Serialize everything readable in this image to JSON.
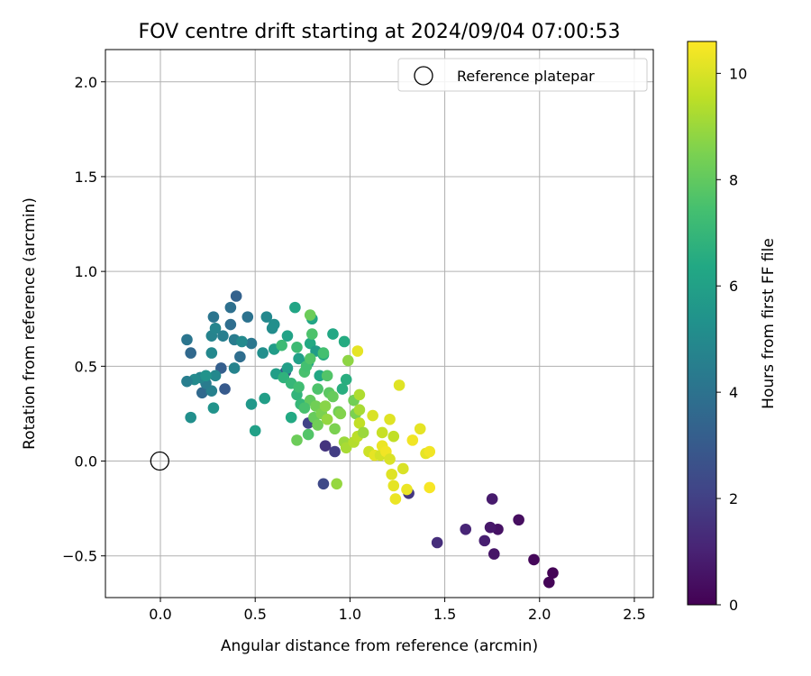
{
  "chart_data": {
    "type": "scatter",
    "title": "FOV centre drift starting at 2024/09/04 07:00:53",
    "xlabel": "Angular distance from reference (arcmin)",
    "ylabel": "Rotation from reference (arcmin)",
    "xlim": [
      -0.29,
      2.6
    ],
    "ylim": [
      -0.72,
      2.17
    ],
    "xticks": [
      0.0,
      0.5,
      1.0,
      1.5,
      2.0,
      2.5
    ],
    "xtick_labels": [
      "0.0",
      "0.5",
      "1.0",
      "1.5",
      "2.0",
      "2.5"
    ],
    "yticks": [
      -0.5,
      0.0,
      0.5,
      1.0,
      1.5,
      2.0
    ],
    "ytick_labels": [
      "−0.5",
      "0.0",
      "0.5",
      "1.0",
      "1.5",
      "2.0"
    ],
    "grid": true,
    "legend": {
      "position": "upper-right",
      "entries": [
        "Reference platepar"
      ]
    },
    "reference_point": {
      "name": "Reference platepar",
      "x": 0.0,
      "y": 0.0,
      "marker": "open-circle"
    },
    "colorbar": {
      "label": "Hours from first FF file",
      "colormap": "viridis",
      "range": [
        0,
        10.6
      ],
      "ticks": [
        0,
        2,
        4,
        6,
        8,
        10
      ],
      "tick_labels": [
        "0",
        "2",
        "4",
        "6",
        "8",
        "10"
      ]
    },
    "series": [
      {
        "points": [
          [
            2.07,
            -0.59,
            0.05
          ],
          [
            2.05,
            -0.64,
            0.1
          ],
          [
            1.97,
            -0.52,
            0.2
          ],
          [
            1.89,
            -0.31,
            0.4
          ],
          [
            1.78,
            -0.36,
            0.5
          ],
          [
            1.76,
            -0.49,
            0.6
          ],
          [
            1.74,
            -0.35,
            0.7
          ],
          [
            1.75,
            -0.2,
            0.8
          ],
          [
            1.71,
            -0.42,
            0.9
          ],
          [
            1.61,
            -0.36,
            1.1
          ],
          [
            1.46,
            -0.43,
            1.4
          ],
          [
            1.31,
            -0.17,
            1.7
          ],
          [
            0.86,
            -0.12,
            2.3
          ],
          [
            0.92,
            0.05,
            1.9
          ],
          [
            0.87,
            0.08,
            1.6
          ],
          [
            0.78,
            0.2,
            2.1
          ],
          [
            0.66,
            0.47,
            2.8
          ],
          [
            0.4,
            0.87,
            3.3
          ],
          [
            0.34,
            0.38,
            3.0
          ],
          [
            0.32,
            0.49,
            3.2
          ],
          [
            0.22,
            0.36,
            3.6
          ],
          [
            0.16,
            0.57,
            3.6
          ],
          [
            0.14,
            0.64,
            4.1
          ],
          [
            0.28,
            0.76,
            4.1
          ],
          [
            0.37,
            0.81,
            3.9
          ],
          [
            0.37,
            0.72,
            3.8
          ],
          [
            0.46,
            0.76,
            4.0
          ],
          [
            0.42,
            0.55,
            3.8
          ],
          [
            0.48,
            0.62,
            4.2
          ],
          [
            0.39,
            0.64,
            4.4
          ],
          [
            0.33,
            0.66,
            4.5
          ],
          [
            0.27,
            0.66,
            4.7
          ],
          [
            0.29,
            0.7,
            4.8
          ],
          [
            0.27,
            0.57,
            4.9
          ],
          [
            0.29,
            0.45,
            4.9
          ],
          [
            0.27,
            0.37,
            4.6
          ],
          [
            0.24,
            0.41,
            4.4
          ],
          [
            0.21,
            0.44,
            4.8
          ],
          [
            0.18,
            0.43,
            5.0
          ],
          [
            0.14,
            0.42,
            4.5
          ],
          [
            0.16,
            0.23,
            5.2
          ],
          [
            0.28,
            0.28,
            5.4
          ],
          [
            0.24,
            0.45,
            5.4
          ],
          [
            0.39,
            0.49,
            4.7
          ],
          [
            0.43,
            0.63,
            5.0
          ],
          [
            0.54,
            0.57,
            5.2
          ],
          [
            0.56,
            0.76,
            4.9
          ],
          [
            0.59,
            0.7,
            5.1
          ],
          [
            0.6,
            0.72,
            5.2
          ],
          [
            0.6,
            0.59,
            5.8
          ],
          [
            0.61,
            0.46,
            5.9
          ],
          [
            0.67,
            0.49,
            5.9
          ],
          [
            0.67,
            0.66,
            6.1
          ],
          [
            0.71,
            0.81,
            6.2
          ],
          [
            0.73,
            0.54,
            6.0
          ],
          [
            0.78,
            0.52,
            6.0
          ],
          [
            0.79,
            0.62,
            6.4
          ],
          [
            0.8,
            0.75,
            6.2
          ],
          [
            0.82,
            0.58,
            5.8
          ],
          [
            0.84,
            0.45,
            6.3
          ],
          [
            0.86,
            0.56,
            6.5
          ],
          [
            0.91,
            0.67,
            6.3
          ],
          [
            0.97,
            0.63,
            6.5
          ],
          [
            0.98,
            0.43,
            6.6
          ],
          [
            0.96,
            0.38,
            6.6
          ],
          [
            0.48,
            0.3,
            5.6
          ],
          [
            0.55,
            0.33,
            5.9
          ],
          [
            0.5,
            0.16,
            6.0
          ],
          [
            0.69,
            0.23,
            6.4
          ],
          [
            0.72,
            0.35,
            6.9
          ],
          [
            0.74,
            0.3,
            7.0
          ],
          [
            0.65,
            0.44,
            6.8
          ],
          [
            0.69,
            0.41,
            7.0
          ],
          [
            0.72,
            0.6,
            7.2
          ],
          [
            0.64,
            0.61,
            7.2
          ],
          [
            0.73,
            0.39,
            7.3
          ],
          [
            0.76,
            0.47,
            7.5
          ],
          [
            0.77,
            0.5,
            7.4
          ],
          [
            0.79,
            0.54,
            7.7
          ],
          [
            0.8,
            0.67,
            7.6
          ],
          [
            0.79,
            0.77,
            8.2
          ],
          [
            0.83,
            0.38,
            7.6
          ],
          [
            0.86,
            0.57,
            7.4
          ],
          [
            0.88,
            0.45,
            7.7
          ],
          [
            0.89,
            0.36,
            7.9
          ],
          [
            0.91,
            0.34,
            8.1
          ],
          [
            0.79,
            0.32,
            8.0
          ],
          [
            0.81,
            0.23,
            8.1
          ],
          [
            0.82,
            0.29,
            8.3
          ],
          [
            0.76,
            0.28,
            7.5
          ],
          [
            0.78,
            0.14,
            7.7
          ],
          [
            0.72,
            0.11,
            8.2
          ],
          [
            0.83,
            0.19,
            8.3
          ],
          [
            0.85,
            0.25,
            8.5
          ],
          [
            0.87,
            0.29,
            8.7
          ],
          [
            0.88,
            0.22,
            8.9
          ],
          [
            0.92,
            0.17,
            8.5
          ],
          [
            0.94,
            0.26,
            8.3
          ],
          [
            0.95,
            0.25,
            8.6
          ],
          [
            0.97,
            0.1,
            9.0
          ],
          [
            0.98,
            0.07,
            9.2
          ],
          [
            0.99,
            0.53,
            8.8
          ],
          [
            1.02,
            0.32,
            8.3
          ],
          [
            1.03,
            0.25,
            8.5
          ],
          [
            1.05,
            0.27,
            9.2
          ],
          [
            1.05,
            0.35,
            9.3
          ],
          [
            1.05,
            0.2,
            9.6
          ],
          [
            1.02,
            0.1,
            9.4
          ],
          [
            1.04,
            0.13,
            9.5
          ],
          [
            1.07,
            0.15,
            9.0
          ],
          [
            0.93,
            -0.12,
            8.9
          ],
          [
            1.04,
            0.58,
            10.2
          ],
          [
            1.1,
            0.05,
            9.8
          ],
          [
            1.12,
            0.24,
            10.0
          ],
          [
            1.13,
            0.03,
            10.2
          ],
          [
            1.16,
            0.03,
            9.9
          ],
          [
            1.17,
            0.15,
            9.7
          ],
          [
            1.17,
            0.08,
            10.3
          ],
          [
            1.19,
            0.05,
            10.4
          ],
          [
            1.21,
            0.22,
            10.1
          ],
          [
            1.23,
            0.13,
            9.6
          ],
          [
            1.21,
            0.01,
            10.0
          ],
          [
            1.22,
            -0.07,
            10.1
          ],
          [
            1.23,
            -0.13,
            10.2
          ],
          [
            1.24,
            -0.2,
            10.3
          ],
          [
            1.26,
            0.4,
            10.1
          ],
          [
            1.28,
            -0.04,
            10.0
          ],
          [
            1.3,
            -0.15,
            10.3
          ],
          [
            1.33,
            0.11,
            10.4
          ],
          [
            1.37,
            0.17,
            10.2
          ],
          [
            1.4,
            0.04,
            10.2
          ],
          [
            1.42,
            0.05,
            10.4
          ],
          [
            1.42,
            -0.14,
            10.5
          ]
        ]
      }
    ]
  }
}
